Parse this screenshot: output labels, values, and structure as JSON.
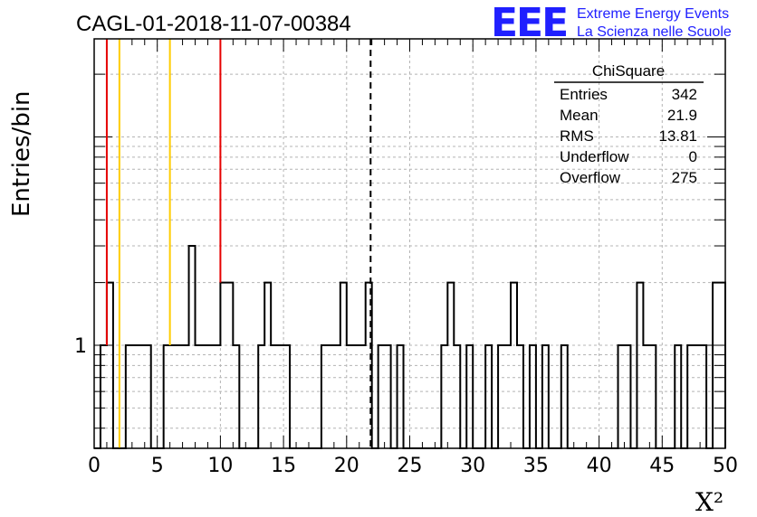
{
  "chart_data": {
    "type": "bar",
    "title": "CAGL-01-2018-11-07-00384",
    "xlabel": "X²",
    "ylabel": "Entries/bin",
    "xlim": [
      0,
      50
    ],
    "ylog": true,
    "grid": true,
    "bin_width": 0.5,
    "bin_starts": [
      0.5,
      1.0,
      2.5,
      3.0,
      3.5,
      4.0,
      5.5,
      6.0,
      6.5,
      7.0,
      7.5,
      8.0,
      8.5,
      9.0,
      9.5,
      10.0,
      10.5,
      11.0,
      13.0,
      13.5,
      14.0,
      14.5,
      15.0,
      18.0,
      18.5,
      19.0,
      19.5,
      20.0,
      20.5,
      21.0,
      21.5,
      22.5,
      23.0,
      24.0,
      27.5,
      28.0,
      28.5,
      29.5,
      31.0,
      32.0,
      32.5,
      33.0,
      33.5,
      34.5,
      35.5,
      37.0,
      41.5,
      42.0,
      43.0,
      43.5,
      44.0,
      46.0,
      47.0,
      47.5,
      48.0,
      49.0,
      49.5
    ],
    "values": [
      1,
      2,
      1,
      1,
      1,
      1,
      1,
      1,
      1,
      1,
      3,
      1,
      1,
      1,
      1,
      2,
      2,
      1,
      1,
      2,
      1,
      1,
      1,
      1,
      1,
      1,
      2,
      1,
      1,
      1,
      2,
      1,
      1,
      1,
      1,
      2,
      1,
      1,
      1,
      1,
      1,
      2,
      1,
      1,
      1,
      1,
      1,
      1,
      2,
      1,
      1,
      1,
      1,
      1,
      1,
      2,
      2
    ],
    "x_ticks": [
      "0",
      "5",
      "10",
      "15",
      "20",
      "25",
      "30",
      "35",
      "40",
      "45",
      "50"
    ],
    "y_tick_label": "1",
    "reference_lines": [
      {
        "x": 1.0,
        "color": "#e60000",
        "style": "solid"
      },
      {
        "x": 2.0,
        "color": "#ffcc00",
        "style": "solid"
      },
      {
        "x": 6.0,
        "color": "#ffcc00",
        "style": "solid"
      },
      {
        "x": 10.0,
        "color": "#e60000",
        "style": "solid"
      },
      {
        "x": 21.9,
        "color": "#000000",
        "style": "dashed"
      }
    ],
    "stats_box": {
      "name": "ChiSquare",
      "rows": [
        {
          "label": "Entries",
          "value": "342"
        },
        {
          "label": "Mean",
          "value": "21.9"
        },
        {
          "label": "RMS",
          "value": "13.81"
        },
        {
          "label": "Underflow",
          "value": "0"
        },
        {
          "label": "Overflow",
          "value": "275"
        }
      ]
    }
  },
  "logo": {
    "mark": "EEE",
    "line1": "Extreme Energy Events",
    "line2": "La Scienza nelle Scuole",
    "color": "#2020ff"
  }
}
